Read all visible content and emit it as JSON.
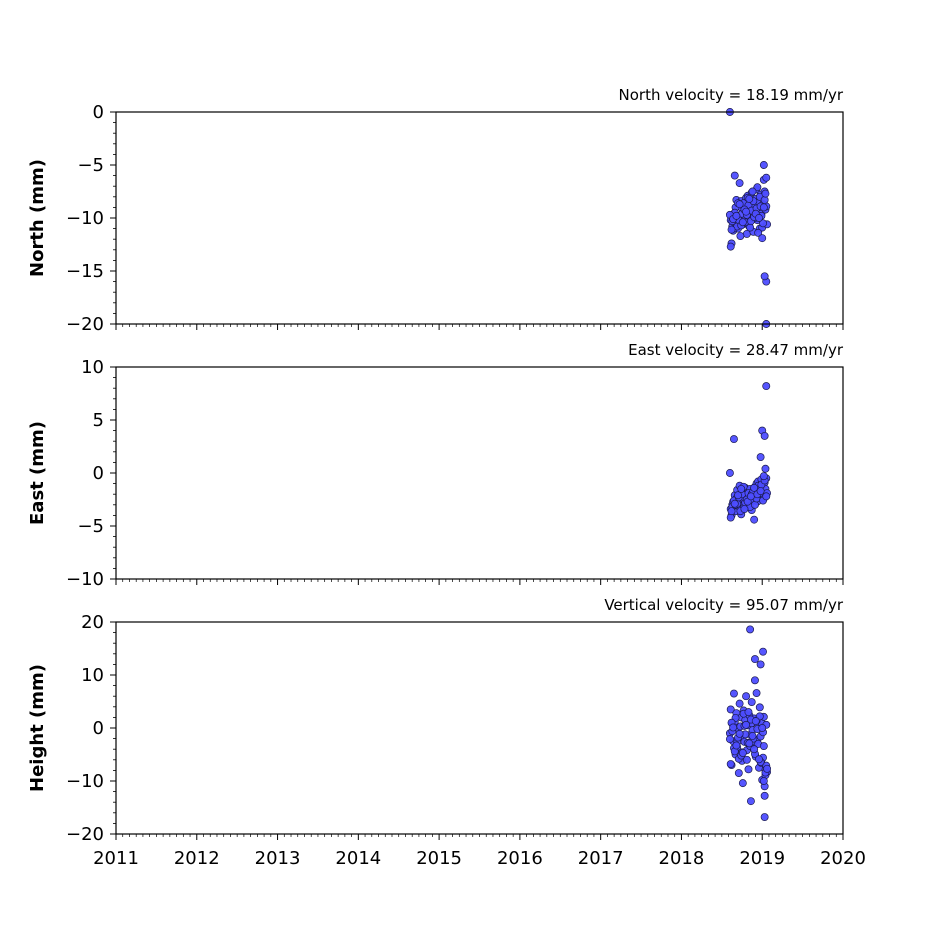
{
  "chart_data": [
    {
      "type": "scatter",
      "title": "North velocity = 18.19 mm/yr",
      "ylabel": "North (mm)",
      "xlim": [
        2011,
        2020
      ],
      "ylim": [
        -20,
        0
      ],
      "yticks": [
        0,
        -5,
        -10,
        -15,
        -20
      ],
      "ytick_labels": [
        "0",
        "−5",
        "−10",
        "−15",
        "−20"
      ],
      "xticks": [],
      "series": [
        {
          "x": [
            2018.6,
            2018.61,
            2018.62,
            2018.63,
            2018.64,
            2018.65,
            2018.66,
            2018.67,
            2018.68,
            2018.69,
            2018.7,
            2018.71,
            2018.72,
            2018.73,
            2018.74,
            2018.75,
            2018.76,
            2018.77,
            2018.78,
            2018.79,
            2018.8,
            2018.81,
            2018.82,
            2018.83,
            2018.84,
            2018.85,
            2018.86,
            2018.87,
            2018.88,
            2018.89,
            2018.9,
            2018.91,
            2018.92,
            2018.93,
            2018.94,
            2018.95,
            2018.96,
            2018.97,
            2018.98,
            2018.99,
            2019.0,
            2019.01,
            2019.02,
            2019.03,
            2019.04,
            2019.05,
            2019.06,
            2018.61,
            2018.63,
            2018.65,
            2018.67,
            2018.69,
            2018.71,
            2018.73,
            2018.75,
            2018.77,
            2018.79,
            2018.81,
            2018.83,
            2018.85,
            2018.87,
            2018.89,
            2018.91,
            2018.93,
            2018.95,
            2018.97,
            2018.99,
            2019.01,
            2019.03,
            2019.05,
            2018.62,
            2018.66,
            2018.7,
            2018.74,
            2018.78,
            2018.82,
            2018.86,
            2018.9,
            2018.94,
            2018.98,
            2019.02,
            2019.04,
            2018.6,
            2018.64,
            2018.68,
            2018.72,
            2018.76,
            2018.8,
            2018.84,
            2018.88,
            2018.92,
            2018.96,
            2019.0,
            2019.02,
            2019.05,
            2019.03,
            2019.05
          ],
          "y": [
            0,
            -10.2,
            -12.4,
            -10.8,
            -11.2,
            -9.6,
            -6.0,
            -10.5,
            -8.3,
            -9.9,
            -11.0,
            -10.4,
            -6.7,
            -10.2,
            -8.4,
            -9.1,
            -10.6,
            -8.9,
            -9.3,
            -10.1,
            -8.1,
            -11.5,
            -7.9,
            -9.4,
            -10.8,
            -8.6,
            -9.0,
            -7.6,
            -10.0,
            -11.3,
            -9.5,
            -8.8,
            -8.2,
            -7.3,
            -10.2,
            -9.7,
            -8.5,
            -11.0,
            -7.8,
            -9.6,
            -10.9,
            -8.7,
            -6.4,
            -7.5,
            -9.2,
            -8.9,
            -10.6,
            -12.7,
            -10.3,
            -11.0,
            -9.0,
            -10.8,
            -10.2,
            -11.7,
            -9.6,
            -8.6,
            -10.4,
            -9.7,
            -8.8,
            -10.9,
            -9.3,
            -8.4,
            -10.0,
            -9.1,
            -11.4,
            -8.0,
            -9.8,
            -10.5,
            -8.3,
            -6.2,
            -11.1,
            -9.5,
            -8.6,
            -10.7,
            -9.2,
            -8.1,
            -10.3,
            -9.9,
            -7.1,
            -8.9,
            -9.0,
            -7.7,
            -9.7,
            -10.1,
            -9.8,
            -8.7,
            -10.4,
            -9.4,
            -8.2,
            -7.5,
            -9.6,
            -10.0,
            -11.9,
            -5.0,
            -16.0,
            -15.5,
            -20.0
          ]
        }
      ]
    },
    {
      "type": "scatter",
      "title": "East velocity = 28.47 mm/yr",
      "ylabel": "East (mm)",
      "xlim": [
        2011,
        2020
      ],
      "ylim": [
        -10,
        10
      ],
      "yticks": [
        10,
        5,
        0,
        -5,
        -10
      ],
      "ytick_labels": [
        "10",
        "5",
        "0",
        "−5",
        "−10"
      ],
      "xticks": [],
      "series": [
        {
          "x": [
            2018.6,
            2018.61,
            2018.62,
            2018.63,
            2018.64,
            2018.65,
            2018.66,
            2018.67,
            2018.68,
            2018.69,
            2018.7,
            2018.71,
            2018.72,
            2018.73,
            2018.74,
            2018.75,
            2018.76,
            2018.77,
            2018.78,
            2018.79,
            2018.8,
            2018.81,
            2018.82,
            2018.83,
            2018.84,
            2018.85,
            2018.86,
            2018.87,
            2018.88,
            2018.89,
            2018.9,
            2018.91,
            2018.92,
            2018.93,
            2018.94,
            2018.95,
            2018.96,
            2018.97,
            2018.98,
            2018.99,
            2019.0,
            2019.01,
            2019.02,
            2019.03,
            2019.04,
            2019.05,
            2019.06,
            2018.61,
            2018.63,
            2018.65,
            2018.67,
            2018.69,
            2018.71,
            2018.73,
            2018.75,
            2018.77,
            2018.79,
            2018.81,
            2018.83,
            2018.85,
            2018.87,
            2018.89,
            2018.91,
            2018.93,
            2018.95,
            2018.97,
            2018.99,
            2019.01,
            2019.03,
            2019.05,
            2018.62,
            2018.66,
            2018.7,
            2018.74,
            2018.78,
            2018.82,
            2018.86,
            2018.9,
            2018.94,
            2018.98,
            2019.02,
            2019.04,
            2019.0,
            2019.03,
            2019.05
          ],
          "y": [
            0,
            -3.4,
            -4.0,
            -3.0,
            -2.7,
            3.2,
            -2.1,
            -3.6,
            -2.4,
            -1.6,
            -3.1,
            -2.8,
            -1.2,
            -2.5,
            -3.9,
            -2.2,
            -1.8,
            -3.3,
            -2.6,
            -1.4,
            -2.0,
            -3.0,
            -2.3,
            -1.7,
            -2.9,
            -1.5,
            -2.4,
            -3.5,
            -1.9,
            -2.6,
            -4.4,
            -1.3,
            -2.2,
            -1.0,
            -2.7,
            -0.8,
            -1.6,
            -2.1,
            1.5,
            -0.6,
            -1.8,
            -1.1,
            -2.4,
            -0.9,
            -1.5,
            -0.5,
            -1.9,
            -4.2,
            -3.2,
            -2.6,
            -3.0,
            -2.9,
            -2.3,
            -3.6,
            -2.0,
            -1.3,
            -2.8,
            -2.5,
            -1.9,
            -3.2,
            -2.0,
            -1.7,
            -3.0,
            -2.4,
            -1.2,
            -1.9,
            -1.1,
            -2.6,
            -0.7,
            -2.2,
            -3.6,
            -2.9,
            -2.1,
            -1.5,
            -3.4,
            -2.7,
            -2.2,
            -1.4,
            -2.0,
            -1.7,
            -0.3,
            0.4,
            4.0,
            3.5,
            8.2
          ]
        }
      ]
    },
    {
      "type": "scatter",
      "title": "Vertical velocity = 95.07 mm/yr",
      "ylabel": "Height (mm)",
      "xlim": [
        2011,
        2020
      ],
      "ylim": [
        -20,
        20
      ],
      "yticks": [
        20,
        10,
        0,
        -10,
        -20
      ],
      "ytick_labels": [
        "20",
        "10",
        "0",
        "−10",
        "−20"
      ],
      "xticks": [
        2011,
        2012,
        2013,
        2014,
        2015,
        2016,
        2017,
        2018,
        2019,
        2020
      ],
      "xtick_labels": [
        "2011",
        "2012",
        "2013",
        "2014",
        "2015",
        "2016",
        "2017",
        "2018",
        "2019",
        "2020"
      ],
      "series": [
        {
          "x": [
            2018.6,
            2018.61,
            2018.62,
            2018.63,
            2018.64,
            2018.65,
            2018.66,
            2018.67,
            2018.68,
            2018.69,
            2018.7,
            2018.71,
            2018.72,
            2018.73,
            2018.74,
            2018.75,
            2018.76,
            2018.77,
            2018.78,
            2018.79,
            2018.8,
            2018.81,
            2018.82,
            2018.83,
            2018.84,
            2018.85,
            2018.86,
            2018.87,
            2018.88,
            2018.89,
            2018.9,
            2018.91,
            2018.92,
            2018.93,
            2018.94,
            2018.95,
            2018.96,
            2018.97,
            2018.98,
            2018.99,
            2019.0,
            2019.01,
            2019.02,
            2019.03,
            2019.04,
            2019.05,
            2019.06,
            2018.61,
            2018.63,
            2018.65,
            2018.67,
            2018.69,
            2018.71,
            2018.73,
            2018.75,
            2018.77,
            2018.79,
            2018.81,
            2018.83,
            2018.85,
            2018.87,
            2018.89,
            2018.91,
            2018.93,
            2018.95,
            2018.97,
            2018.99,
            2019.01,
            2019.03,
            2019.05,
            2018.62,
            2018.66,
            2018.7,
            2018.74,
            2018.78,
            2018.82,
            2018.86,
            2018.9,
            2018.94,
            2018.98,
            2019.02,
            2019.04,
            2018.6,
            2018.64,
            2018.68,
            2018.72,
            2018.76,
            2018.8,
            2018.84,
            2018.88,
            2018.92,
            2018.96,
            2019.0,
            2019.02,
            2019.04,
            2019.06,
            2018.91,
            2018.98,
            2019.01,
            2018.85,
            2019.03
          ],
          "y": [
            -1.0,
            3.5,
            -7.0,
            0.8,
            -2.5,
            6.5,
            1.2,
            -5.0,
            2.8,
            -3.6,
            0.0,
            -8.5,
            4.6,
            -1.8,
            2.0,
            -6.2,
            -10.4,
            3.3,
            -2.6,
            1.5,
            6.0,
            -4.2,
            0.5,
            -7.8,
            2.4,
            -1.3,
            -13.8,
            4.9,
            -0.4,
            -3.1,
            1.8,
            9.0,
            -5.4,
            6.6,
            -2.2,
            0.7,
            -7.5,
            3.9,
            -1.6,
            1.0,
            -9.8,
            -5.6,
            2.1,
            -12.8,
            -7.9,
            0.6,
            -8.3,
            -6.8,
            -0.6,
            -3.8,
            1.9,
            -2.7,
            -5.8,
            0.3,
            -4.6,
            2.7,
            -1.2,
            -6.0,
            3.0,
            -3.4,
            0.9,
            -2.0,
            -4.9,
            1.4,
            -3.0,
            2.2,
            -6.6,
            -0.8,
            -11.0,
            -7.1,
            1.0,
            -4.4,
            -1.8,
            -5.2,
            0.4,
            -2.8,
            1.6,
            -4.0,
            -0.2,
            -6.4,
            -3.4,
            -8.9,
            -2.1,
            0.1,
            -3.3,
            -1.1,
            -4.7,
            0.6,
            -2.9,
            -1.5,
            1.3,
            -5.9,
            0.0,
            -10.0,
            -8.4,
            -7.7,
            13.0,
            12.0,
            14.4,
            18.6,
            -16.8
          ]
        }
      ]
    }
  ],
  "style": {
    "point_fill": "#4d4dff",
    "point_stroke": "#1a1a4d"
  }
}
